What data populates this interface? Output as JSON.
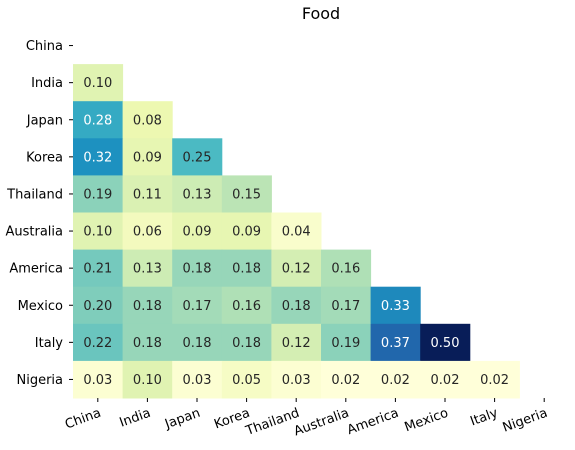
{
  "chart_data": {
    "type": "heatmap",
    "title": "Food",
    "labels": [
      "China",
      "India",
      "Japan",
      "Korea",
      "Thailand",
      "Australia",
      "America",
      "Mexico",
      "Italy",
      "Nigeria"
    ],
    "mask": "upper-triangle-including-diagonal",
    "colormap": "YlGnBu",
    "vmin": 0.02,
    "vmax": 0.5,
    "rows": [
      [],
      [
        0.1
      ],
      [
        0.28,
        0.08
      ],
      [
        0.32,
        0.09,
        0.25
      ],
      [
        0.19,
        0.11,
        0.13,
        0.15
      ],
      [
        0.1,
        0.06,
        0.09,
        0.09,
        0.04
      ],
      [
        0.21,
        0.13,
        0.18,
        0.18,
        0.12,
        0.16
      ],
      [
        0.2,
        0.18,
        0.17,
        0.16,
        0.18,
        0.17,
        0.33
      ],
      [
        0.22,
        0.18,
        0.18,
        0.18,
        0.12,
        0.19,
        0.37,
        0.5
      ],
      [
        0.03,
        0.1,
        0.03,
        0.05,
        0.03,
        0.02,
        0.02,
        0.02,
        0.02
      ]
    ]
  }
}
